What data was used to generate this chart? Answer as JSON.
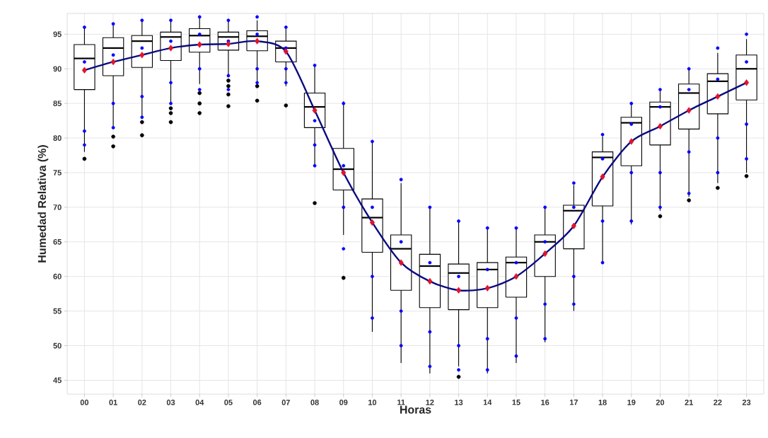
{
  "chart_data": {
    "type": "box",
    "xlabel": "Horas",
    "ylabel": "Humedad Relativa (%)",
    "categories": [
      "00",
      "01",
      "02",
      "03",
      "04",
      "05",
      "06",
      "07",
      "08",
      "09",
      "10",
      "11",
      "12",
      "13",
      "14",
      "15",
      "16",
      "17",
      "18",
      "19",
      "20",
      "21",
      "22",
      "23"
    ],
    "ylim": [
      43,
      98
    ],
    "yticks": [
      45,
      50,
      55,
      60,
      65,
      70,
      75,
      80,
      85,
      90,
      95
    ],
    "grid": true,
    "series": [
      {
        "type": "scatter",
        "color": "#0000ff",
        "marker": "circle",
        "x": [
          "00",
          "00",
          "00",
          "00",
          "01",
          "01",
          "01",
          "01",
          "02",
          "02",
          "02",
          "02",
          "03",
          "03",
          "03",
          "03",
          "04",
          "04",
          "04",
          "04",
          "05",
          "05",
          "05",
          "05",
          "06",
          "06",
          "06",
          "06",
          "07",
          "07",
          "07",
          "07",
          "08",
          "08",
          "08",
          "08",
          "09",
          "09",
          "09",
          "09",
          "10",
          "10",
          "10",
          "10",
          "11",
          "11",
          "11",
          "11",
          "12",
          "12",
          "12",
          "12",
          "13",
          "13",
          "13",
          "13",
          "14",
          "14",
          "14",
          "14",
          "15",
          "15",
          "15",
          "15",
          "16",
          "16",
          "16",
          "16",
          "17",
          "17",
          "17",
          "17",
          "18",
          "18",
          "18",
          "18",
          "19",
          "19",
          "19",
          "19",
          "20",
          "20",
          "20",
          "20",
          "21",
          "21",
          "21",
          "21",
          "22",
          "22",
          "22",
          "22",
          "23",
          "23",
          "23",
          "23"
        ],
        "values": [
          96,
          91,
          81,
          79,
          96.5,
          92,
          85,
          81.5,
          97,
          93,
          86,
          83,
          97,
          94,
          88,
          85,
          97.5,
          95,
          90,
          87,
          97,
          94,
          89,
          87,
          97.5,
          95,
          90,
          88,
          96,
          93,
          90,
          88,
          90.5,
          82.5,
          79,
          76,
          85,
          76,
          70,
          64,
          79.5,
          70,
          60,
          54,
          74,
          65,
          55,
          50,
          70,
          62,
          52,
          47,
          68,
          60,
          50,
          46.5,
          67,
          61,
          51,
          46.5,
          67,
          62,
          54,
          48.5,
          70,
          65,
          56,
          51,
          73.5,
          70,
          60,
          56,
          80.5,
          77,
          68,
          62,
          85,
          82,
          75,
          68,
          87,
          84.5,
          75,
          70,
          90,
          87,
          78,
          72,
          93,
          88.5,
          80,
          75,
          95,
          91,
          82,
          77
        ]
      },
      {
        "color": "#000000",
        "boxes": [
          {
            "low": 78,
            "q1": 87,
            "median": 91.5,
            "q3": 93.5,
            "high": 96,
            "outliers": [
              77
            ]
          },
          {
            "low": 81.5,
            "q1": 89,
            "median": 93,
            "q3": 94.5,
            "high": 96.5,
            "outliers": [
              80.2,
              78.8
            ]
          },
          {
            "low": 83,
            "q1": 90.2,
            "median": 94,
            "q3": 94.8,
            "high": 97,
            "outliers": [
              82.3,
              80.4
            ]
          },
          {
            "low": 85,
            "q1": 91.2,
            "median": 94.6,
            "q3": 95.3,
            "high": 97,
            "outliers": [
              84.3,
              83.6,
              82.3
            ]
          },
          {
            "low": 87.8,
            "q1": 92.4,
            "median": 94.8,
            "q3": 95.8,
            "high": 97.5,
            "outliers": [
              86.5,
              85,
              83.6
            ]
          },
          {
            "low": 89,
            "q1": 92.7,
            "median": 94.6,
            "q3": 95.3,
            "high": 97,
            "outliers": [
              88.3,
              87.5,
              86.3,
              84.6
            ]
          },
          {
            "low": 88.2,
            "q1": 92.6,
            "median": 94.7,
            "q3": 95.5,
            "high": 97,
            "outliers": [
              87.5,
              85.4
            ]
          },
          {
            "low": 87.5,
            "q1": 91,
            "median": 93,
            "q3": 94,
            "high": 95.8,
            "outliers": [
              84.7
            ]
          },
          {
            "low": 76,
            "q1": 81.5,
            "median": 84.5,
            "q3": 86.5,
            "high": 90.5,
            "outliers": [
              70.6
            ]
          },
          {
            "low": 66,
            "q1": 72.5,
            "median": 75.5,
            "q3": 78.5,
            "high": 85.3,
            "outliers": [
              59.8
            ]
          },
          {
            "low": 52,
            "q1": 63.5,
            "median": 68.5,
            "q3": 71.2,
            "high": 79.5
          },
          {
            "low": 47.5,
            "q1": 58,
            "median": 64,
            "q3": 66,
            "high": 73.5
          },
          {
            "low": 46,
            "q1": 55.5,
            "median": 61.5,
            "q3": 63.2,
            "high": 70.2
          },
          {
            "low": 47,
            "q1": 55.2,
            "median": 60.5,
            "q3": 61.8,
            "high": 68.2,
            "outliers": [
              45.5
            ]
          },
          {
            "low": 46,
            "q1": 55.5,
            "median": 61,
            "q3": 62,
            "high": 66.8
          },
          {
            "low": 47.5,
            "q1": 57,
            "median": 62,
            "q3": 62.8,
            "high": 67
          },
          {
            "low": 50.5,
            "q1": 60,
            "median": 65,
            "q3": 66,
            "high": 69.8
          },
          {
            "low": 55,
            "q1": 64,
            "median": 69.5,
            "q3": 70.3,
            "high": 73.2
          },
          {
            "low": 62,
            "q1": 70.2,
            "median": 77.2,
            "q3": 78,
            "high": 80.2
          },
          {
            "low": 67.5,
            "q1": 76,
            "median": 82.2,
            "q3": 83,
            "high": 85.2
          },
          {
            "low": 69.5,
            "q1": 79,
            "median": 84.5,
            "q3": 85.2,
            "high": 86.8,
            "outliers": [
              68.7
            ]
          },
          {
            "low": 71.5,
            "q1": 81.3,
            "median": 86.5,
            "q3": 87.8,
            "high": 90,
            "outliers": [
              71
            ]
          },
          {
            "low": 73.5,
            "q1": 83.5,
            "median": 88.2,
            "q3": 89.3,
            "high": 92.3,
            "outliers": [
              72.8
            ]
          },
          {
            "low": 75,
            "q1": 85.5,
            "median": 90,
            "q3": 92,
            "high": 94.3,
            "outliers": [
              74.5
            ]
          }
        ]
      },
      {
        "type": "line",
        "color": "#0a0a80",
        "marker": "none",
        "values": [
          89.8,
          91,
          92,
          93,
          93.5,
          93.6,
          94,
          92.5,
          84,
          75,
          67.8,
          62,
          59.3,
          58,
          58.3,
          60,
          63.3,
          67.3,
          74.4,
          79.5,
          81.7,
          84,
          86,
          88
        ]
      },
      {
        "type": "scatter",
        "color": "#e0142a",
        "marker": "diamond",
        "values": [
          89.8,
          91,
          92,
          93,
          93.5,
          93.6,
          94,
          92.5,
          84,
          75,
          67.8,
          62,
          59.3,
          58,
          58.3,
          60,
          63.3,
          67.3,
          74.4,
          79.5,
          81.7,
          84,
          86,
          88
        ]
      }
    ]
  }
}
